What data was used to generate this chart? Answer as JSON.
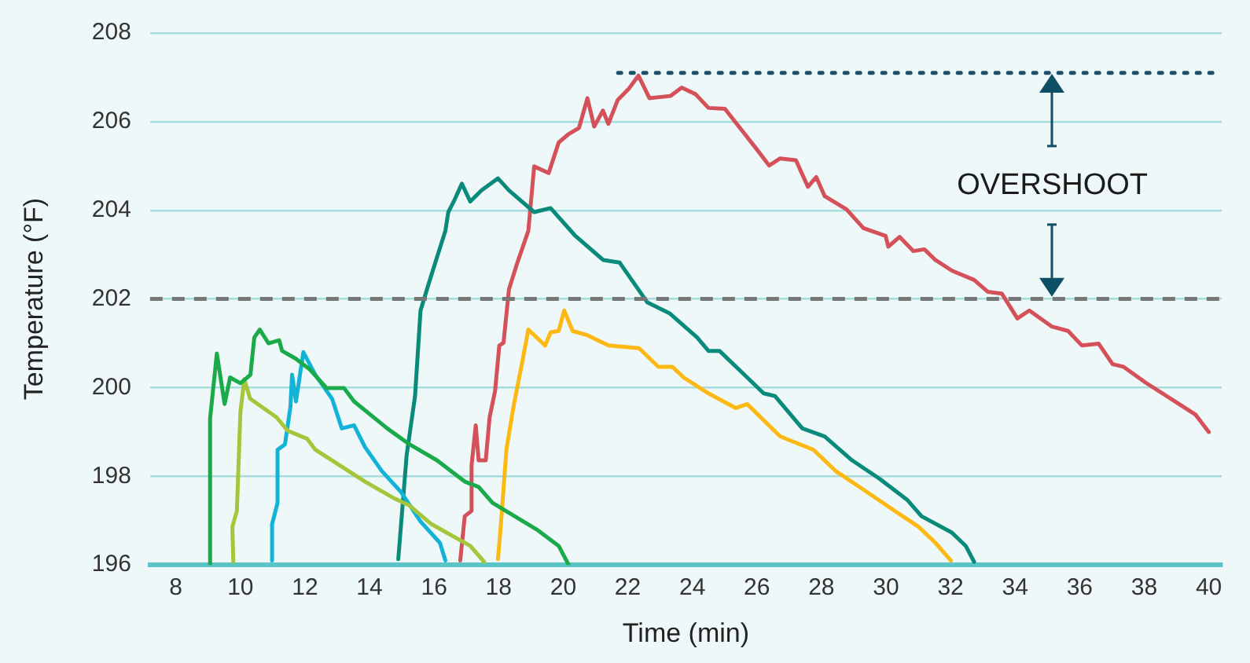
{
  "chart_data": {
    "type": "line",
    "xlabel": "Time (min)",
    "ylabel": "Temperature (°F)",
    "xlim": [
      7.2,
      40.4
    ],
    "xticks": [
      8,
      10,
      12,
      14,
      16,
      18,
      20,
      22,
      24,
      26,
      28,
      30,
      32,
      34,
      36,
      38,
      40
    ],
    "ylim": [
      196,
      208
    ],
    "yticks": [
      196,
      198,
      200,
      202,
      204,
      206,
      208
    ],
    "grid": "y",
    "legend": false,
    "marker": "none",
    "line_style": "solid",
    "ref_lines": [
      {
        "axis": "y",
        "value": 202,
        "color": "#777777",
        "line_style": "dashed"
      }
    ],
    "annotations": [
      "OVERSHOOT"
    ],
    "series": [
      {
        "color": "#1aaa4a",
        "x": [
          9.06,
          9.06,
          9.27,
          9.51,
          9.68,
          10.0,
          10.31,
          10.43,
          10.6,
          10.87,
          11.2,
          11.29,
          11.72,
          12.15,
          12.67,
          13.21,
          13.52,
          14.55,
          15.24,
          16.09,
          16.95,
          17.38,
          17.81,
          19.18,
          19.86,
          20.17
        ],
        "values": [
          196.0,
          199.3,
          200.77,
          199.63,
          200.23,
          200.1,
          200.29,
          201.13,
          201.31,
          201.0,
          201.07,
          200.83,
          200.65,
          200.41,
          199.99,
          199.99,
          199.69,
          199.08,
          198.72,
          198.36,
          197.88,
          197.76,
          197.4,
          196.8,
          196.43,
          196.0
        ]
      },
      {
        "color": "#a3c63a",
        "x": [
          9.78,
          9.75,
          9.89,
          10.0,
          10.12,
          10.3,
          11.12,
          11.46,
          12.06,
          12.32,
          12.84,
          13.86,
          14.72,
          15.24,
          15.92,
          17.12,
          17.55
        ],
        "values": [
          196.07,
          196.86,
          197.22,
          199.45,
          200.19,
          199.75,
          199.33,
          199.03,
          198.85,
          198.6,
          198.36,
          197.88,
          197.52,
          197.34,
          196.92,
          196.43,
          196.07
        ]
      },
      {
        "color": "#12b3d6",
        "x": [
          10.98,
          10.98,
          11.15,
          11.15,
          11.38,
          11.55,
          11.6,
          11.72,
          11.95,
          12.32,
          12.84,
          13.14,
          13.52,
          13.86,
          14.38,
          14.98,
          15.58,
          16.18,
          16.35
        ],
        "values": [
          196.1,
          196.92,
          197.4,
          198.6,
          198.72,
          199.57,
          200.29,
          199.69,
          200.8,
          200.29,
          199.75,
          199.08,
          199.15,
          198.66,
          198.12,
          197.64,
          196.98,
          196.5,
          196.1
        ]
      },
      {
        "color": "#0a8a7a",
        "x": [
          14.89,
          15.15,
          15.41,
          15.58,
          15.83,
          16.09,
          16.35,
          16.44,
          16.61,
          16.86,
          17.12,
          17.47,
          17.98,
          18.32,
          19.1,
          19.61,
          20.38,
          21.24,
          21.75,
          22.61,
          23.29,
          24.15,
          24.5,
          24.84,
          25.7,
          26.21,
          26.56,
          27.41,
          28.1,
          28.95,
          29.81,
          30.67,
          31.1,
          32.04,
          32.47,
          32.73
        ],
        "values": [
          196.13,
          198.48,
          199.81,
          201.74,
          202.34,
          202.94,
          203.54,
          203.96,
          204.2,
          204.6,
          204.2,
          204.45,
          204.72,
          204.45,
          203.96,
          204.05,
          203.42,
          202.88,
          202.82,
          201.92,
          201.68,
          201.13,
          200.83,
          200.83,
          200.23,
          199.87,
          199.81,
          199.08,
          198.9,
          198.36,
          197.94,
          197.46,
          197.1,
          196.73,
          196.43,
          196.07
        ]
      },
      {
        "color": "#fdb913",
        "x": [
          17.98,
          18.07,
          18.24,
          18.46,
          18.75,
          18.92,
          19.44,
          19.61,
          19.86,
          20.03,
          20.29,
          20.72,
          21.41,
          22.35,
          22.95,
          23.38,
          23.73,
          24.5,
          25.35,
          25.7,
          26.72,
          27.75,
          28.44,
          29.3,
          30.15,
          31.01,
          31.53,
          32.01
        ],
        "values": [
          196.13,
          196.92,
          198.6,
          199.57,
          200.65,
          201.31,
          200.95,
          201.25,
          201.28,
          201.74,
          201.28,
          201.19,
          200.95,
          200.89,
          200.47,
          200.47,
          200.23,
          199.87,
          199.54,
          199.63,
          198.9,
          198.6,
          198.12,
          197.7,
          197.28,
          196.86,
          196.5,
          196.1
        ]
      },
      {
        "color": "#d4515a",
        "x": [
          16.81,
          16.95,
          17.16,
          17.16,
          17.29,
          17.38,
          17.6,
          17.72,
          17.89,
          18.02,
          18.15,
          18.32,
          18.58,
          18.92,
          19.1,
          19.55,
          19.86,
          20.15,
          20.49,
          20.75,
          20.96,
          21.23,
          21.4,
          21.69,
          22.03,
          22.33,
          22.67,
          23.32,
          23.67,
          24.1,
          24.5,
          25.01,
          25.44,
          25.96,
          26.38,
          26.72,
          27.21,
          27.58,
          27.84,
          28.1,
          28.78,
          29.3,
          29.99,
          30.07,
          30.42,
          30.85,
          31.19,
          31.53,
          32.04,
          32.73,
          33.16,
          33.59,
          34.07,
          34.44,
          35.13,
          35.64,
          36.07,
          36.59,
          37.02,
          37.36,
          38.05,
          39.08,
          39.59,
          40.0
        ],
        "values": [
          196.1,
          197.1,
          197.22,
          198.24,
          199.15,
          198.36,
          198.36,
          199.33,
          199.93,
          200.95,
          201.01,
          202.22,
          202.82,
          203.54,
          204.99,
          204.84,
          205.53,
          205.71,
          205.86,
          206.53,
          205.89,
          206.25,
          205.95,
          206.49,
          206.74,
          207.04,
          206.53,
          206.58,
          206.77,
          206.62,
          206.31,
          206.29,
          205.89,
          205.41,
          205.01,
          205.17,
          205.13,
          204.53,
          204.75,
          204.32,
          204.02,
          203.6,
          203.42,
          203.18,
          203.4,
          203.08,
          203.12,
          202.88,
          202.64,
          202.43,
          202.16,
          202.12,
          201.56,
          201.74,
          201.38,
          201.28,
          200.95,
          200.99,
          200.53,
          200.47,
          200.11,
          199.63,
          199.39,
          199.0
        ]
      },
      {
        "color": "#1b4f6a",
        "line_style": "dotted",
        "x": [
          21.7,
          40.4
        ],
        "values": [
          207.1,
          207.1
        ]
      }
    ]
  }
}
